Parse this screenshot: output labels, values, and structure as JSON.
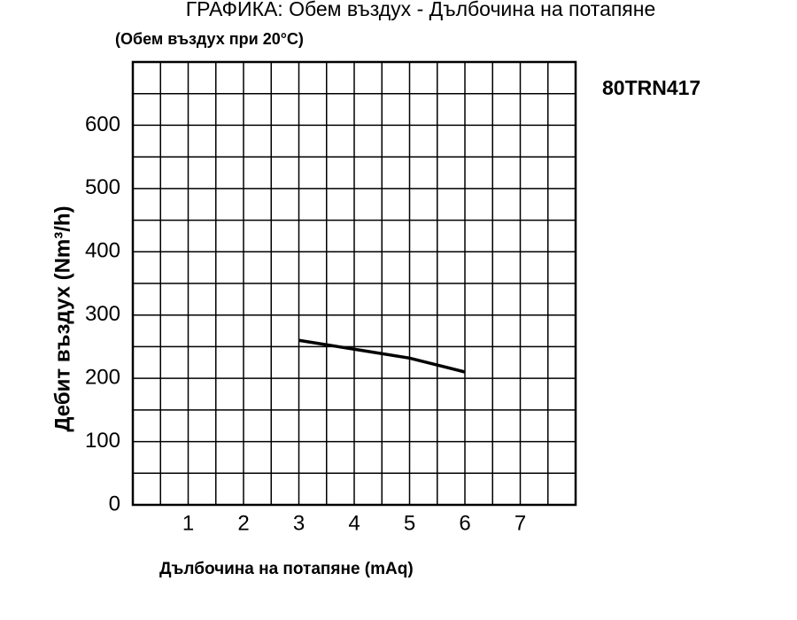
{
  "chart_data": {
    "type": "line",
    "title": "ГРАФИКА: Обем въздух - Дълбочина на потапяне",
    "subtitle": "(Обем въздух при 20°C)",
    "x_label": "Дълбочина на потапяне (mAq)",
    "y_label": "Дебит въздух (Nm³/h)",
    "x": [
      3,
      4,
      5,
      6
    ],
    "series": [
      {
        "name": "80TRN417",
        "color": "#000000",
        "values": [
          260,
          246,
          232,
          210
        ]
      }
    ],
    "xlim": [
      0,
      8
    ],
    "xticks": [
      1,
      2,
      3,
      4,
      5,
      6,
      7
    ],
    "ylim": [
      0,
      700
    ],
    "yticks": [
      0,
      100,
      200,
      300,
      400,
      500,
      600
    ],
    "grid": true
  }
}
